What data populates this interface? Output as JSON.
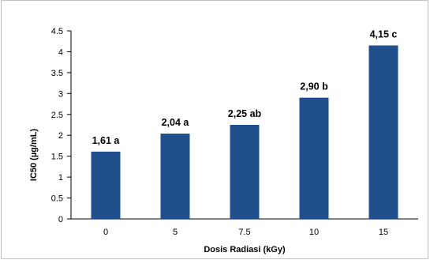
{
  "chart_data": {
    "type": "bar",
    "categories": [
      "0",
      "5",
      "7.5",
      "10",
      "15"
    ],
    "values": [
      1.61,
      2.04,
      2.25,
      2.9,
      4.15
    ],
    "data_labels": [
      "1,61 a",
      "2,04 a",
      "2,25 ab",
      "2,90 b",
      "4,15 c"
    ],
    "y_ticks": [
      "0",
      "0.5",
      "1",
      "1.5",
      "2",
      "2.5",
      "3",
      "3.5",
      "4",
      "4.5"
    ],
    "xlabel": "Dosis Radiasi  (kGy)",
    "ylabel": "IC50 (µg/mL)",
    "ylim": [
      0,
      4.5
    ],
    "grid": false,
    "bar_color": "#1f4e8c"
  }
}
